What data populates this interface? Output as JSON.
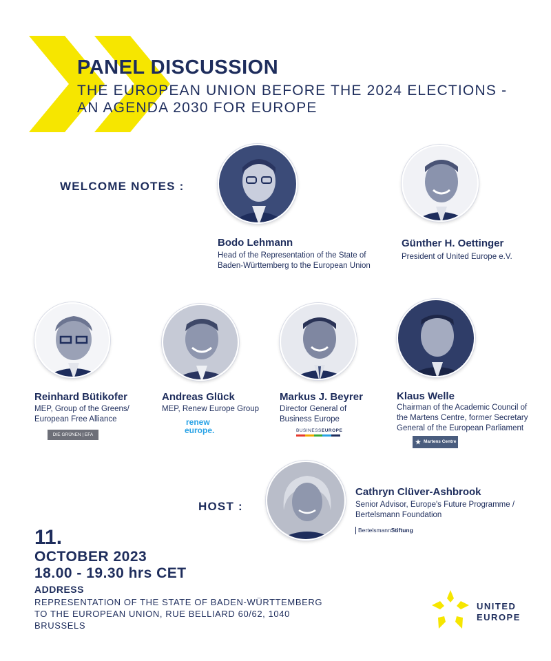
{
  "header": {
    "title": "PANEL DISCUSSION",
    "subtitle_line1": "THE EUROPEAN UNION BEFORE THE 2024 ELECTIONS -",
    "subtitle_line2": "AN AGENDA 2030 FOR EUROPE"
  },
  "colors": {
    "navy": "#1e2d5c",
    "yellow": "#f6e600"
  },
  "welcome": {
    "label": "WELCOME NOTES :",
    "speakers": [
      {
        "name": "Bodo Lehmann",
        "desc1": "Head of the Representation of the State of",
        "desc2": "Baden-Württemberg to the European Union"
      },
      {
        "name": "Günther H. Oettinger",
        "desc1": "President of United Europe e.V."
      }
    ]
  },
  "panel": [
    {
      "name": "Reinhard Bütikofer",
      "desc1": "MEP, Group of the Greens/",
      "desc2": "European Free Alliance",
      "logo": "DIE GRÜNEN | EFA"
    },
    {
      "name": "Andreas Glück",
      "desc1": "MEP, Renew Europe Group",
      "logo1": "renew",
      "logo2": "europe."
    },
    {
      "name": "Markus J. Beyrer",
      "desc1": "Director General of",
      "desc2": "Business Europe",
      "logo1": "BUSINESS",
      "logo2": "EUROPE"
    },
    {
      "name": "Klaus Welle",
      "desc1": "Chairman of the Academic Council of",
      "desc2": "the Martens Centre, former Secretary",
      "desc3": "General of the European Parliament",
      "logo": "Martens Centre"
    }
  ],
  "host": {
    "label": "HOST :",
    "name": "Cathryn Clüver-Ashbrook",
    "desc1": "Senior Advisor, Europe's Future Programme /",
    "desc2": "Bertelsmann Foundation",
    "logo1": "Bertelsmann",
    "logo2": "Stiftung"
  },
  "event": {
    "day": "11.",
    "month_year": "OCTOBER 2023",
    "time": "18.00 - 19.30 hrs CET",
    "address_label": "ADDRESS",
    "address_line1": "REPRESENTATION OF THE STATE OF BADEN-WÜRTTEMBERG",
    "address_line2": "TO THE EUROPEAN UNION, RUE BELLIARD 60/62, 1040",
    "address_line3": "BRUSSELS"
  },
  "brand": {
    "line1": "UNITED",
    "line2": "EUROPE"
  }
}
